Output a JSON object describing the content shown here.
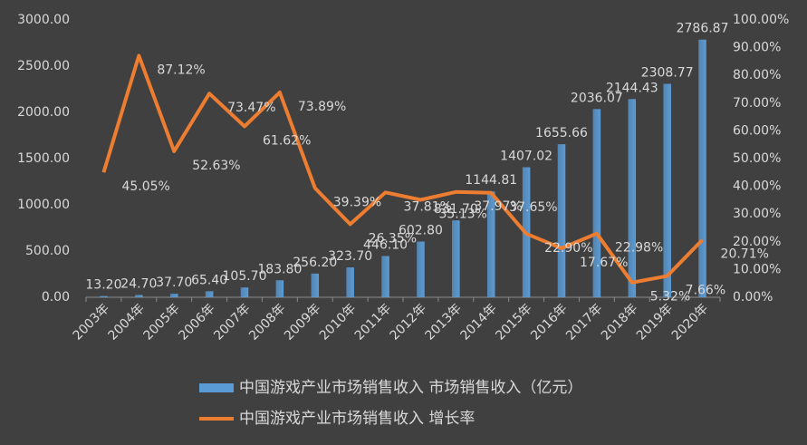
{
  "chart_data": {
    "type": "bar-line",
    "categories": [
      "2003年",
      "2004年",
      "2005年",
      "2006年",
      "2007年",
      "2008年",
      "2009年",
      "2010年",
      "2011年",
      "2012年",
      "2013年",
      "2014年",
      "2015年",
      "2016年",
      "2017年",
      "2018年",
      "2019年",
      "2020年"
    ],
    "series": [
      {
        "name": "中国游戏产业市场销售收入 市场销售收入（亿元）",
        "type": "bar",
        "color": "#5b9bd5",
        "values": [
          13.2,
          24.7,
          37.7,
          65.4,
          105.7,
          183.8,
          256.2,
          323.7,
          446.1,
          602.8,
          831.7,
          1144.81,
          1407.02,
          1655.66,
          2036.07,
          2144.43,
          2308.77,
          2786.87
        ],
        "value_labels": [
          "13.20",
          "24.70",
          "37.70",
          "65.40",
          "105.70",
          "183.80",
          "256.20",
          "323.70",
          "446.10",
          "602.80",
          "831.70",
          "1144.81",
          "1407.02",
          "1655.66",
          "2036.07",
          "2144.43",
          "2308.77",
          "2786.87"
        ]
      },
      {
        "name": "中国游戏产业市场销售收入 增长率",
        "type": "line",
        "axis": "y2",
        "color": "#ed7d31",
        "values": [
          45.05,
          87.12,
          52.63,
          73.47,
          61.62,
          73.89,
          39.39,
          26.35,
          37.81,
          35.13,
          37.97,
          37.65,
          22.9,
          17.67,
          22.98,
          5.32,
          7.66,
          20.71
        ],
        "value_labels": [
          "45.05%",
          "87.12%",
          "52.63%",
          "73.47%",
          "61.62%",
          "73.89%",
          "39.39%",
          "26.35%",
          "37.81%",
          "35.13%",
          "37.97%",
          "37.65%",
          "22.90%",
          "17.67%",
          "22.98%",
          "5.32%",
          "7.66%",
          "20.71%"
        ]
      }
    ],
    "ylim": [
      0,
      3000
    ],
    "yticks": [
      {
        "value": 0,
        "label": "0.00"
      },
      {
        "value": 500,
        "label": "500.00"
      },
      {
        "value": 1000,
        "label": "1000.00"
      },
      {
        "value": 1500,
        "label": "1500.00"
      },
      {
        "value": 2000,
        "label": "2000.00"
      },
      {
        "value": 2500,
        "label": "2500.00"
      },
      {
        "value": 3000,
        "label": "3000.00"
      }
    ],
    "y2lim": [
      0,
      100
    ],
    "y2ticks": [
      {
        "value": 0,
        "label": "0.00%"
      },
      {
        "value": 10,
        "label": "10.00%"
      },
      {
        "value": 20,
        "label": "20.00%"
      },
      {
        "value": 30,
        "label": "30.00%"
      },
      {
        "value": 40,
        "label": "40.00%"
      },
      {
        "value": 50,
        "label": "50.00%"
      },
      {
        "value": 60,
        "label": "60.00%"
      },
      {
        "value": 70,
        "label": "70.00%"
      },
      {
        "value": 80,
        "label": "80.00%"
      },
      {
        "value": 90,
        "label": "90.00%"
      },
      {
        "value": 100,
        "label": "100.00%"
      }
    ],
    "grid": false,
    "legend": "bottom"
  }
}
